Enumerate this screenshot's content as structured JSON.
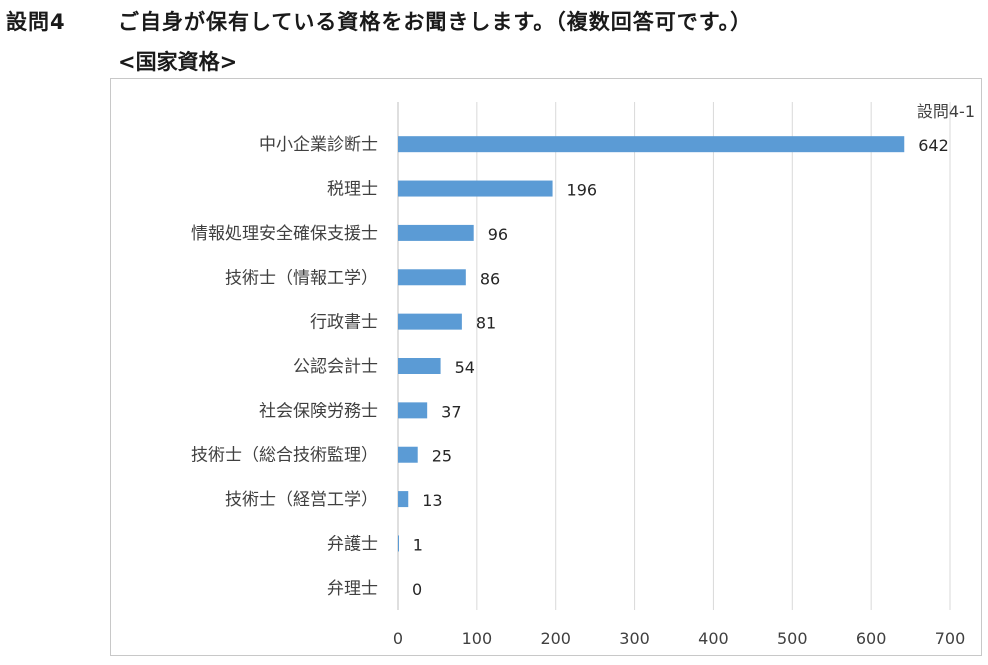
{
  "header": {
    "question_number": "設問4",
    "question_text": "ご自身が保有している資格をお聞きします。（複数回答可です。）",
    "subtitle": "<国家資格>"
  },
  "chart_data": {
    "type": "bar",
    "orientation": "horizontal",
    "figure_id": "設問4-1",
    "categories": [
      "中小企業診断士",
      "税理士",
      "情報処理安全確保支援士",
      "技術士（情報工学）",
      "行政書士",
      "公認会計士",
      "社会保険労務士",
      "技術士（総合技術監理）",
      "技術士（経営工学）",
      "弁護士",
      "弁理士"
    ],
    "values": [
      642,
      196,
      96,
      86,
      81,
      54,
      37,
      25,
      13,
      1,
      0
    ],
    "xlim": [
      0,
      700
    ],
    "xticks": [
      0,
      100,
      200,
      300,
      400,
      500,
      600,
      700
    ],
    "grid": true,
    "data_labels": true,
    "bar_color": "#5b9bd5",
    "grid_color": "#d9d9d9"
  }
}
